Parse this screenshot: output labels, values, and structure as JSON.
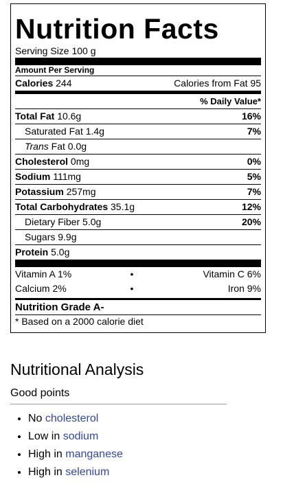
{
  "facts": {
    "title": "Nutrition Facts",
    "serving": "Serving Size 100 g",
    "amount_per_serving": "Amount Per Serving",
    "calories_label": "Calories",
    "calories_value": "244",
    "calories_from_fat": "Calories from Fat 95",
    "daily_value_header": "% Daily Value*",
    "rows": [
      {
        "label": "Total Fat",
        "amount": "10.6g",
        "dv": "16%"
      },
      {
        "label": "Saturated Fat",
        "amount": "1.4g",
        "dv": "7%"
      },
      {
        "label_italic": "Trans",
        "label": "Fat",
        "amount": "0.0g",
        "dv": ""
      },
      {
        "label": "Cholesterol",
        "amount": "0mg",
        "dv": "0%"
      },
      {
        "label": "Sodium",
        "amount": "111mg",
        "dv": "5%"
      },
      {
        "label": "Potassium",
        "amount": "257mg",
        "dv": "7%"
      },
      {
        "label": "Total Carbohydrates",
        "amount": "35.1g",
        "dv": "12%"
      },
      {
        "label": "Dietary Fiber",
        "amount": "5.0g",
        "dv": "20%"
      },
      {
        "label": "Sugars",
        "amount": "9.9g",
        "dv": ""
      },
      {
        "label": "Protein",
        "amount": "5.0g",
        "dv": ""
      }
    ],
    "vitamins": [
      {
        "left": "Vitamin A 1%",
        "bullet": "•",
        "right": "Vitamin C 6%"
      },
      {
        "left": "Calcium 2%",
        "bullet": "•",
        "right": "Iron 9%"
      }
    ],
    "grade": "Nutrition Grade A-",
    "footnote": "* Based on a 2000 calorie diet"
  },
  "analysis": {
    "heading": "Nutritional Analysis",
    "subheading": "Good points",
    "points": [
      {
        "prefix": "No ",
        "link": "cholesterol"
      },
      {
        "prefix": "Low in ",
        "link": "sodium"
      },
      {
        "prefix": "High in ",
        "link": "manganese"
      },
      {
        "prefix": "High in ",
        "link": "selenium"
      }
    ]
  },
  "colors": {
    "link": "#3045b0"
  }
}
